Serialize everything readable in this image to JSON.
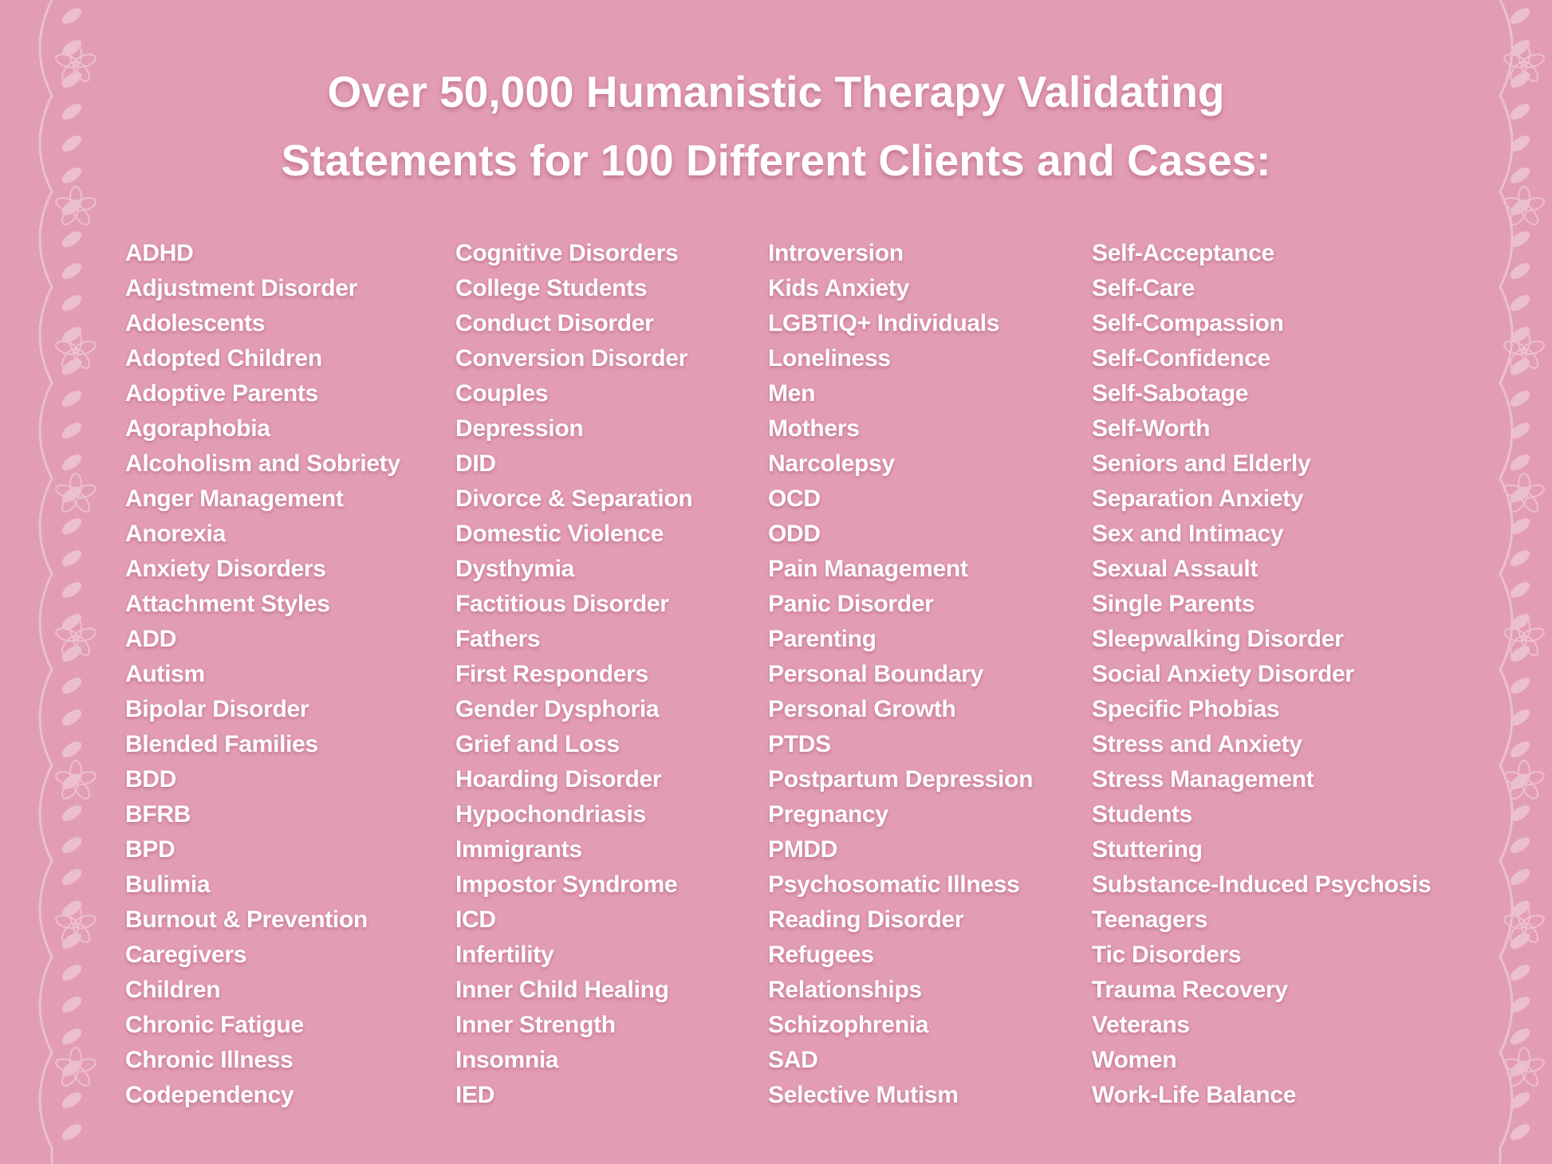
{
  "title": {
    "line1": "Over 50,000 Humanistic Therapy Validating",
    "line2": "Statements for 100 Different Clients and Cases:"
  },
  "colors": {
    "background": "#e29db4",
    "text": "#ffffff",
    "decoration": "#f3c9d7"
  },
  "columns": [
    [
      "ADHD",
      "Adjustment Disorder",
      "Adolescents",
      "Adopted Children",
      "Adoptive Parents",
      "Agoraphobia",
      "Alcoholism and Sobriety",
      "Anger Management",
      "Anorexia",
      "Anxiety Disorders",
      "Attachment Styles",
      "ADD",
      "Autism",
      "Bipolar Disorder",
      "Blended Families",
      "BDD",
      "BFRB",
      "BPD",
      "Bulimia",
      "Burnout & Prevention",
      "Caregivers",
      "Children",
      "Chronic Fatigue",
      "Chronic Illness",
      "Codependency"
    ],
    [
      "Cognitive Disorders",
      "College Students",
      "Conduct Disorder",
      "Conversion Disorder",
      "Couples",
      "Depression",
      "DID",
      "Divorce & Separation",
      "Domestic Violence",
      "Dysthymia",
      "Factitious Disorder",
      "Fathers",
      "First Responders",
      "Gender Dysphoria",
      "Grief and Loss",
      "Hoarding Disorder",
      "Hypochondriasis",
      "Immigrants",
      "Impostor Syndrome",
      "ICD",
      "Infertility",
      "Inner Child Healing",
      "Inner Strength",
      "Insomnia",
      "IED"
    ],
    [
      "Introversion",
      "Kids Anxiety",
      "LGBTIQ+ Individuals",
      "Loneliness",
      "Men",
      "Mothers",
      "Narcolepsy",
      "OCD",
      "ODD",
      "Pain Management",
      "Panic Disorder",
      "Parenting",
      "Personal Boundary",
      "Personal Growth",
      "PTDS",
      "Postpartum Depression",
      "Pregnancy",
      "PMDD",
      "Psychosomatic Illness",
      "Reading Disorder",
      "Refugees",
      "Relationships",
      "Schizophrenia",
      "SAD",
      "Selective Mutism"
    ],
    [
      "Self-Acceptance",
      "Self-Care",
      "Self-Compassion",
      "Self-Confidence",
      "Self-Sabotage",
      "Self-Worth",
      "Seniors and Elderly",
      "Separation Anxiety",
      "Sex and Intimacy",
      "Sexual Assault",
      "Single Parents",
      "Sleepwalking Disorder",
      "Social Anxiety Disorder",
      "Specific Phobias",
      "Stress and Anxiety",
      "Stress Management",
      "Students",
      "Stuttering",
      "Substance-Induced Psychosis",
      "Teenagers",
      "Tic Disorders",
      "Trauma Recovery",
      "Veterans",
      "Women",
      "Work-Life Balance"
    ]
  ]
}
